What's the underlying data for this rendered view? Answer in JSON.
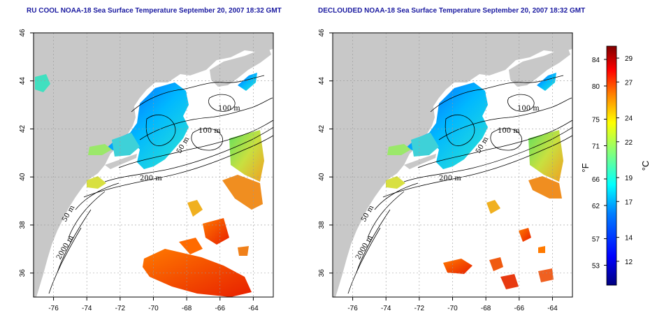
{
  "panels": [
    {
      "id": "left",
      "title": "RU COOL NOAA-18 Sea Surface Temperature September 20, 2007 18:32 GMT",
      "depth_labels": [
        "100 m",
        "100 m",
        "50 m",
        "200 m",
        "50 m",
        "2000 m"
      ]
    },
    {
      "id": "right",
      "title": "DECLOUDED NOAA-18 Sea Surface Temperature September 20, 2007 18:32 GMT",
      "depth_labels": [
        "100 m",
        "100 m",
        "50 m",
        "200 m",
        "50 m",
        "2000 m"
      ]
    }
  ],
  "axes": {
    "lon_ticks": [
      -76,
      -74,
      -72,
      -70,
      -68,
      -66,
      -64
    ],
    "lon_labels": [
      "-76",
      "-74",
      "-72",
      "-70",
      "-68",
      "-66",
      "-64"
    ],
    "lat_ticks": [
      36,
      38,
      40,
      42,
      44,
      46
    ],
    "lat_labels": [
      "36",
      "38",
      "40",
      "42",
      "44",
      "46"
    ],
    "lon_range": [
      -77.2,
      -62.8
    ],
    "lat_range": [
      35.0,
      46.0
    ],
    "grid": "dotted"
  },
  "colorbar": {
    "unit_f": "°F",
    "unit_c": "°C",
    "fahrenheit_labels": [
      "84",
      "80",
      "75",
      "71",
      "66",
      "62",
      "57",
      "53"
    ],
    "celsius_labels": [
      "29",
      "27",
      "24",
      "22",
      "19",
      "17",
      "14",
      "12"
    ],
    "celsius_range": [
      10,
      30
    ],
    "colors": [
      "#00007f",
      "#0000ff",
      "#007fff",
      "#00ffff",
      "#7fff7f",
      "#ffff00",
      "#ff7f00",
      "#ff0000",
      "#7f0000"
    ]
  },
  "colors": {
    "land": "#c8c8c8",
    "ocean": "#ffffff",
    "title": "#1a1aa0"
  }
}
